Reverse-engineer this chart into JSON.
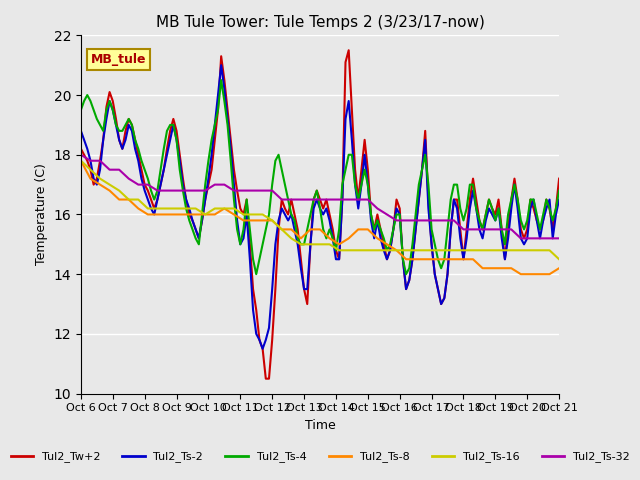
{
  "title": "MB Tule Tower: Tule Temps 2 (3/23/17-now)",
  "xlabel": "Time",
  "ylabel": "Temperature (C)",
  "ylim": [
    10,
    22
  ],
  "yticks": [
    10,
    12,
    14,
    16,
    18,
    20,
    22
  ],
  "xlim": [
    0,
    15
  ],
  "xtick_labels": [
    "Oct 6",
    "Oct 7",
    "Oct 8",
    "Oct 9",
    "Oct 10",
    "Oct 11",
    "Oct 12",
    "Oct 13",
    "Oct 14",
    "Oct 15",
    "Oct 16",
    "Oct 17",
    "Oct 18",
    "Oct 19",
    "Oct 20",
    "Oct 21"
  ],
  "background_color": "#e8e8e8",
  "plot_bg_color": "#e8e8e8",
  "grid_color": "#ffffff",
  "series": {
    "Tul2_Tw+2": {
      "color": "#cc0000",
      "linewidth": 1.5,
      "x": [
        0,
        0.1,
        0.2,
        0.3,
        0.4,
        0.5,
        0.6,
        0.7,
        0.8,
        0.9,
        1.0,
        1.1,
        1.2,
        1.3,
        1.4,
        1.5,
        1.6,
        1.7,
        1.8,
        1.9,
        2.0,
        2.1,
        2.2,
        2.3,
        2.4,
        2.5,
        2.6,
        2.7,
        2.8,
        2.9,
        3.0,
        3.1,
        3.2,
        3.3,
        3.4,
        3.5,
        3.6,
        3.7,
        3.8,
        3.9,
        4.0,
        4.1,
        4.2,
        4.3,
        4.4,
        4.5,
        4.6,
        4.7,
        4.8,
        4.9,
        5.0,
        5.1,
        5.2,
        5.3,
        5.4,
        5.5,
        5.6,
        5.7,
        5.8,
        5.9,
        6.0,
        6.1,
        6.2,
        6.3,
        6.4,
        6.5,
        6.6,
        6.7,
        6.8,
        6.9,
        7.0,
        7.1,
        7.2,
        7.3,
        7.4,
        7.5,
        7.6,
        7.7,
        7.8,
        7.9,
        8.0,
        8.1,
        8.2,
        8.3,
        8.4,
        8.5,
        8.6,
        8.7,
        8.8,
        8.9,
        9.0,
        9.1,
        9.2,
        9.3,
        9.4,
        9.5,
        9.6,
        9.7,
        9.8,
        9.9,
        10.0,
        10.1,
        10.2,
        10.3,
        10.4,
        10.5,
        10.6,
        10.7,
        10.8,
        10.9,
        11.0,
        11.1,
        11.2,
        11.3,
        11.4,
        11.5,
        11.6,
        11.7,
        11.8,
        11.9,
        12.0,
        12.1,
        12.2,
        12.3,
        12.4,
        12.5,
        12.6,
        12.7,
        12.8,
        12.9,
        13.0,
        13.1,
        13.2,
        13.3,
        13.4,
        13.5,
        13.6,
        13.7,
        13.8,
        13.9,
        14.0,
        14.1,
        14.2,
        14.3,
        14.4,
        14.5,
        14.6,
        14.7,
        14.8,
        14.9,
        15.0
      ],
      "y": [
        18.2,
        18.0,
        17.8,
        17.5,
        17.0,
        17.2,
        17.8,
        18.5,
        19.6,
        20.1,
        19.8,
        19.2,
        18.5,
        18.2,
        18.8,
        19.2,
        19.0,
        18.5,
        18.0,
        17.5,
        17.0,
        16.8,
        16.5,
        16.2,
        16.5,
        17.0,
        17.5,
        18.2,
        18.8,
        19.2,
        18.8,
        18.0,
        17.2,
        16.5,
        16.0,
        15.8,
        15.5,
        15.2,
        15.8,
        16.5,
        17.0,
        17.5,
        18.5,
        19.5,
        21.3,
        20.5,
        19.5,
        18.5,
        17.5,
        16.8,
        16.2,
        16.0,
        16.5,
        15.0,
        13.5,
        12.8,
        11.8,
        11.5,
        10.5,
        10.5,
        11.8,
        13.5,
        15.5,
        16.5,
        16.2,
        16.0,
        16.5,
        16.0,
        15.5,
        14.5,
        13.5,
        13.0,
        15.0,
        16.5,
        16.8,
        16.5,
        16.2,
        16.5,
        16.0,
        15.5,
        14.8,
        14.5,
        16.5,
        21.1,
        21.5,
        19.5,
        17.5,
        16.5,
        17.5,
        18.5,
        17.5,
        16.0,
        15.5,
        16.0,
        15.5,
        15.0,
        14.5,
        14.8,
        15.5,
        16.5,
        16.2,
        14.5,
        13.5,
        13.8,
        14.5,
        15.5,
        16.5,
        17.5,
        18.8,
        16.5,
        15.0,
        14.0,
        13.5,
        13.0,
        13.2,
        14.0,
        15.5,
        16.5,
        16.5,
        15.5,
        14.5,
        15.5,
        16.5,
        17.2,
        16.5,
        15.8,
        15.5,
        16.0,
        16.5,
        16.2,
        16.0,
        16.5,
        15.5,
        14.5,
        15.5,
        16.5,
        17.2,
        16.5,
        15.5,
        15.2,
        15.5,
        16.5,
        16.2,
        15.8,
        15.5,
        15.8,
        16.5,
        16.2,
        15.5,
        16.2,
        17.2
      ]
    },
    "Tul2_Ts-2": {
      "color": "#0000cc",
      "linewidth": 1.5,
      "x": [
        0,
        0.1,
        0.2,
        0.3,
        0.4,
        0.5,
        0.6,
        0.7,
        0.8,
        0.9,
        1.0,
        1.1,
        1.2,
        1.3,
        1.4,
        1.5,
        1.6,
        1.7,
        1.8,
        1.9,
        2.0,
        2.1,
        2.2,
        2.3,
        2.4,
        2.5,
        2.6,
        2.7,
        2.8,
        2.9,
        3.0,
        3.1,
        3.2,
        3.3,
        3.4,
        3.5,
        3.6,
        3.7,
        3.8,
        3.9,
        4.0,
        4.1,
        4.2,
        4.3,
        4.4,
        4.5,
        4.6,
        4.7,
        4.8,
        4.9,
        5.0,
        5.1,
        5.2,
        5.3,
        5.4,
        5.5,
        5.6,
        5.7,
        5.8,
        5.9,
        6.0,
        6.1,
        6.2,
        6.3,
        6.4,
        6.5,
        6.6,
        6.7,
        6.8,
        6.9,
        7.0,
        7.1,
        7.2,
        7.3,
        7.4,
        7.5,
        7.6,
        7.7,
        7.8,
        7.9,
        8.0,
        8.1,
        8.2,
        8.3,
        8.4,
        8.5,
        8.6,
        8.7,
        8.8,
        8.9,
        9.0,
        9.1,
        9.2,
        9.3,
        9.4,
        9.5,
        9.6,
        9.7,
        9.8,
        9.9,
        10.0,
        10.1,
        10.2,
        10.3,
        10.4,
        10.5,
        10.6,
        10.7,
        10.8,
        10.9,
        11.0,
        11.1,
        11.2,
        11.3,
        11.4,
        11.5,
        11.6,
        11.7,
        11.8,
        11.9,
        12.0,
        12.1,
        12.2,
        12.3,
        12.4,
        12.5,
        12.6,
        12.7,
        12.8,
        12.9,
        13.0,
        13.1,
        13.2,
        13.3,
        13.4,
        13.5,
        13.6,
        13.7,
        13.8,
        13.9,
        14.0,
        14.1,
        14.2,
        14.3,
        14.4,
        14.5,
        14.6,
        14.7,
        14.8,
        14.9,
        15.0
      ],
      "y": [
        18.8,
        18.5,
        18.2,
        17.8,
        17.2,
        17.0,
        17.5,
        18.5,
        19.2,
        19.8,
        19.5,
        19.0,
        18.5,
        18.2,
        18.5,
        19.0,
        18.8,
        18.2,
        17.8,
        17.2,
        16.8,
        16.5,
        16.2,
        16.0,
        16.5,
        17.0,
        17.5,
        18.0,
        18.5,
        19.0,
        18.5,
        17.8,
        17.0,
        16.5,
        16.2,
        15.8,
        15.5,
        15.2,
        15.8,
        16.5,
        17.2,
        18.0,
        19.0,
        20.0,
        21.0,
        20.2,
        19.2,
        18.2,
        17.0,
        15.8,
        15.0,
        15.2,
        16.0,
        14.5,
        12.8,
        12.0,
        11.8,
        11.5,
        11.8,
        12.2,
        13.5,
        15.0,
        15.8,
        16.2,
        16.0,
        15.8,
        16.0,
        15.5,
        15.0,
        14.2,
        13.5,
        13.5,
        15.0,
        16.2,
        16.5,
        16.2,
        16.0,
        16.2,
        15.8,
        15.2,
        14.5,
        14.5,
        16.5,
        19.2,
        19.8,
        18.5,
        17.0,
        16.2,
        17.0,
        18.0,
        17.0,
        15.8,
        15.2,
        15.8,
        15.2,
        14.8,
        14.5,
        14.8,
        15.5,
        16.2,
        16.0,
        14.5,
        13.5,
        13.8,
        14.5,
        15.5,
        16.5,
        17.5,
        18.5,
        16.2,
        15.0,
        14.0,
        13.5,
        13.0,
        13.2,
        14.0,
        15.5,
        16.5,
        16.2,
        15.2,
        14.5,
        15.2,
        16.2,
        16.8,
        16.2,
        15.5,
        15.2,
        15.8,
        16.2,
        16.0,
        15.8,
        16.2,
        15.2,
        14.5,
        15.2,
        16.2,
        17.0,
        16.2,
        15.2,
        15.0,
        15.2,
        16.2,
        16.5,
        15.8,
        15.2,
        15.8,
        16.2,
        16.5,
        15.2,
        16.0,
        16.5
      ]
    },
    "Tul2_Ts-4": {
      "color": "#00aa00",
      "linewidth": 1.5,
      "x": [
        0,
        0.1,
        0.2,
        0.3,
        0.4,
        0.5,
        0.6,
        0.7,
        0.8,
        0.9,
        1.0,
        1.1,
        1.2,
        1.3,
        1.4,
        1.5,
        1.6,
        1.7,
        1.8,
        1.9,
        2.0,
        2.1,
        2.2,
        2.3,
        2.4,
        2.5,
        2.6,
        2.7,
        2.8,
        2.9,
        3.0,
        3.1,
        3.2,
        3.3,
        3.4,
        3.5,
        3.6,
        3.7,
        3.8,
        3.9,
        4.0,
        4.1,
        4.2,
        4.3,
        4.4,
        4.5,
        4.6,
        4.7,
        4.8,
        4.9,
        5.0,
        5.1,
        5.2,
        5.3,
        5.4,
        5.5,
        5.6,
        5.7,
        5.8,
        5.9,
        6.0,
        6.1,
        6.2,
        6.3,
        6.4,
        6.5,
        6.6,
        6.7,
        6.8,
        6.9,
        7.0,
        7.1,
        7.2,
        7.3,
        7.4,
        7.5,
        7.6,
        7.7,
        7.8,
        7.9,
        8.0,
        8.1,
        8.2,
        8.3,
        8.4,
        8.5,
        8.6,
        8.7,
        8.8,
        8.9,
        9.0,
        9.1,
        9.2,
        9.3,
        9.4,
        9.5,
        9.6,
        9.7,
        9.8,
        9.9,
        10.0,
        10.1,
        10.2,
        10.3,
        10.4,
        10.5,
        10.6,
        10.7,
        10.8,
        10.9,
        11.0,
        11.1,
        11.2,
        11.3,
        11.4,
        11.5,
        11.6,
        11.7,
        11.8,
        11.9,
        12.0,
        12.1,
        12.2,
        12.3,
        12.4,
        12.5,
        12.6,
        12.7,
        12.8,
        12.9,
        13.0,
        13.1,
        13.2,
        13.3,
        13.4,
        13.5,
        13.6,
        13.7,
        13.8,
        13.9,
        14.0,
        14.1,
        14.2,
        14.3,
        14.4,
        14.5,
        14.6,
        14.7,
        14.8,
        14.9,
        15.0
      ],
      "y": [
        19.5,
        19.8,
        20.0,
        19.8,
        19.5,
        19.2,
        19.0,
        18.8,
        19.5,
        19.8,
        19.5,
        19.0,
        18.8,
        18.8,
        19.0,
        19.2,
        19.0,
        18.5,
        18.2,
        17.8,
        17.5,
        17.2,
        16.8,
        16.5,
        16.8,
        17.5,
        18.2,
        18.8,
        19.0,
        19.0,
        18.5,
        17.5,
        16.8,
        16.2,
        15.8,
        15.5,
        15.2,
        15.0,
        16.0,
        17.0,
        17.8,
        18.5,
        19.0,
        19.5,
        20.5,
        19.8,
        19.0,
        17.8,
        16.5,
        15.5,
        15.0,
        15.5,
        16.5,
        15.5,
        14.5,
        14.0,
        14.5,
        15.0,
        15.5,
        16.0,
        17.0,
        17.8,
        18.0,
        17.5,
        17.0,
        16.5,
        16.0,
        15.8,
        15.2,
        15.0,
        15.0,
        15.5,
        16.0,
        16.5,
        16.8,
        16.2,
        15.5,
        15.2,
        15.5,
        15.2,
        14.8,
        15.5,
        17.0,
        17.5,
        18.0,
        18.0,
        17.0,
        16.5,
        17.0,
        17.5,
        17.0,
        16.0,
        15.5,
        15.8,
        15.5,
        15.2,
        14.8,
        15.0,
        15.5,
        16.0,
        16.0,
        14.5,
        14.0,
        14.2,
        15.0,
        16.0,
        17.0,
        17.5,
        18.0,
        17.0,
        15.5,
        15.0,
        14.5,
        14.2,
        14.5,
        15.5,
        16.5,
        17.0,
        17.0,
        16.2,
        15.8,
        16.2,
        17.0,
        17.0,
        16.2,
        15.8,
        15.5,
        16.0,
        16.5,
        16.2,
        15.8,
        16.2,
        15.5,
        15.0,
        16.0,
        16.5,
        17.0,
        16.5,
        15.8,
        15.5,
        15.8,
        16.5,
        16.5,
        16.0,
        15.5,
        16.0,
        16.5,
        16.2,
        15.8,
        16.2,
        16.8
      ]
    },
    "Tul2_Ts-8": {
      "color": "#ff8800",
      "linewidth": 1.5,
      "x": [
        0,
        0.3,
        0.6,
        0.9,
        1.2,
        1.5,
        1.8,
        2.1,
        2.4,
        2.7,
        3.0,
        3.3,
        3.6,
        3.9,
        4.2,
        4.5,
        4.8,
        5.1,
        5.4,
        5.7,
        6.0,
        6.3,
        6.6,
        6.9,
        7.2,
        7.5,
        7.8,
        8.1,
        8.4,
        8.7,
        9.0,
        9.3,
        9.6,
        9.9,
        10.2,
        10.5,
        10.8,
        11.1,
        11.4,
        11.7,
        12.0,
        12.3,
        12.6,
        12.9,
        13.2,
        13.5,
        13.8,
        14.1,
        14.4,
        14.7,
        15.0
      ],
      "y": [
        17.8,
        17.2,
        17.0,
        16.8,
        16.5,
        16.5,
        16.2,
        16.0,
        16.0,
        16.0,
        16.0,
        16.0,
        16.0,
        16.0,
        16.0,
        16.2,
        16.0,
        15.8,
        15.8,
        15.8,
        15.8,
        15.5,
        15.5,
        15.2,
        15.5,
        15.5,
        15.2,
        15.0,
        15.2,
        15.5,
        15.5,
        15.2,
        15.0,
        14.8,
        14.5,
        14.5,
        14.5,
        14.5,
        14.5,
        14.5,
        14.5,
        14.5,
        14.2,
        14.2,
        14.2,
        14.2,
        14.0,
        14.0,
        14.0,
        14.0,
        14.2
      ]
    },
    "Tul2_Ts-16": {
      "color": "#cccc00",
      "linewidth": 1.5,
      "x": [
        0,
        0.3,
        0.6,
        0.9,
        1.2,
        1.5,
        1.8,
        2.1,
        2.4,
        2.7,
        3.0,
        3.3,
        3.6,
        3.9,
        4.2,
        4.5,
        4.8,
        5.1,
        5.4,
        5.7,
        6.0,
        6.3,
        6.6,
        6.9,
        7.2,
        7.5,
        7.8,
        8.1,
        8.4,
        8.7,
        9.0,
        9.3,
        9.6,
        9.9,
        10.2,
        10.5,
        10.8,
        11.1,
        11.4,
        11.7,
        12.0,
        12.3,
        12.6,
        12.9,
        13.2,
        13.5,
        13.8,
        14.1,
        14.4,
        14.7,
        15.0
      ],
      "y": [
        17.8,
        17.5,
        17.2,
        17.0,
        16.8,
        16.5,
        16.5,
        16.2,
        16.2,
        16.2,
        16.2,
        16.2,
        16.2,
        16.0,
        16.2,
        16.2,
        16.2,
        16.0,
        16.0,
        16.0,
        15.8,
        15.5,
        15.2,
        15.0,
        15.0,
        15.0,
        15.0,
        14.8,
        14.8,
        14.8,
        14.8,
        14.8,
        14.8,
        14.8,
        14.8,
        14.8,
        14.8,
        14.8,
        14.8,
        14.8,
        14.8,
        14.8,
        14.8,
        14.8,
        14.8,
        14.8,
        14.8,
        14.8,
        14.8,
        14.8,
        14.5
      ]
    },
    "Tul2_Ts-32": {
      "color": "#aa00aa",
      "linewidth": 1.5,
      "x": [
        0,
        0.3,
        0.6,
        0.9,
        1.2,
        1.5,
        1.8,
        2.1,
        2.4,
        2.7,
        3.0,
        3.3,
        3.6,
        3.9,
        4.2,
        4.5,
        4.8,
        5.1,
        5.4,
        5.7,
        6.0,
        6.3,
        6.6,
        6.9,
        7.2,
        7.5,
        7.8,
        8.1,
        8.4,
        8.7,
        9.0,
        9.3,
        9.6,
        9.9,
        10.2,
        10.5,
        10.8,
        11.1,
        11.4,
        11.7,
        12.0,
        12.3,
        12.6,
        12.9,
        13.2,
        13.5,
        13.8,
        14.1,
        14.4,
        14.7,
        15.0
      ],
      "y": [
        18.0,
        17.8,
        17.8,
        17.5,
        17.5,
        17.2,
        17.0,
        17.0,
        16.8,
        16.8,
        16.8,
        16.8,
        16.8,
        16.8,
        17.0,
        17.0,
        16.8,
        16.8,
        16.8,
        16.8,
        16.8,
        16.5,
        16.5,
        16.5,
        16.5,
        16.5,
        16.5,
        16.5,
        16.5,
        16.5,
        16.5,
        16.2,
        16.0,
        15.8,
        15.8,
        15.8,
        15.8,
        15.8,
        15.8,
        15.8,
        15.5,
        15.5,
        15.5,
        15.5,
        15.5,
        15.5,
        15.2,
        15.2,
        15.2,
        15.2,
        15.2
      ]
    }
  },
  "legend_entries": [
    "Tul2_Tw+2",
    "Tul2_Ts-2",
    "Tul2_Ts-4",
    "Tul2_Ts-8",
    "Tul2_Ts-16",
    "Tul2_Ts-32"
  ],
  "legend_colors": [
    "#cc0000",
    "#0000cc",
    "#00aa00",
    "#ff8800",
    "#cccc00",
    "#aa00aa"
  ],
  "watermark_text": "MB_tule",
  "watermark_bg": "#ffff99",
  "watermark_border": "#aa8800"
}
